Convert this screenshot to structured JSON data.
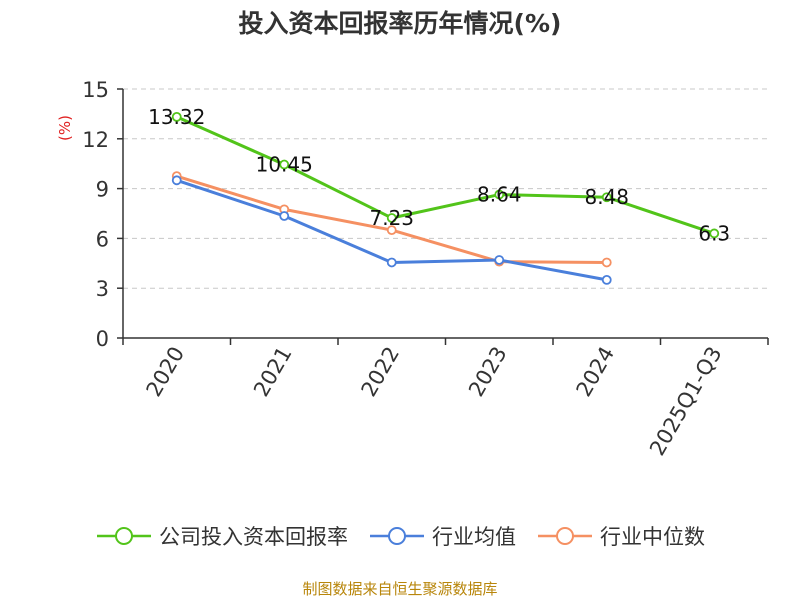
{
  "chart_data": {
    "type": "line",
    "title": "投入资本回报率历年情况(%)",
    "ylabel": "(%)",
    "xlabel": "",
    "categories": [
      "2020",
      "2021",
      "2022",
      "2023",
      "2024",
      "2025Q1-Q3"
    ],
    "ylim": [
      0,
      15
    ],
    "yticks": [
      0,
      3,
      6,
      9,
      12,
      15
    ],
    "grid": true,
    "legend_position": "bottom",
    "series": [
      {
        "name": "公司投入资本回报率",
        "color": "#52c41a",
        "values": [
          13.32,
          10.45,
          7.23,
          8.64,
          8.48,
          6.3
        ],
        "labels": [
          "13.32",
          "10.45",
          "7.23",
          "8.64",
          "8.48",
          "6.3"
        ]
      },
      {
        "name": "行业均值",
        "color": "#4a7fdb",
        "values": [
          9.5,
          7.35,
          4.55,
          4.7,
          3.5,
          null
        ]
      },
      {
        "name": "行业中位数",
        "color": "#f59062",
        "values": [
          9.75,
          7.75,
          6.5,
          4.6,
          4.55,
          null
        ]
      }
    ]
  },
  "source": "制图数据来自恒生聚源数据库"
}
